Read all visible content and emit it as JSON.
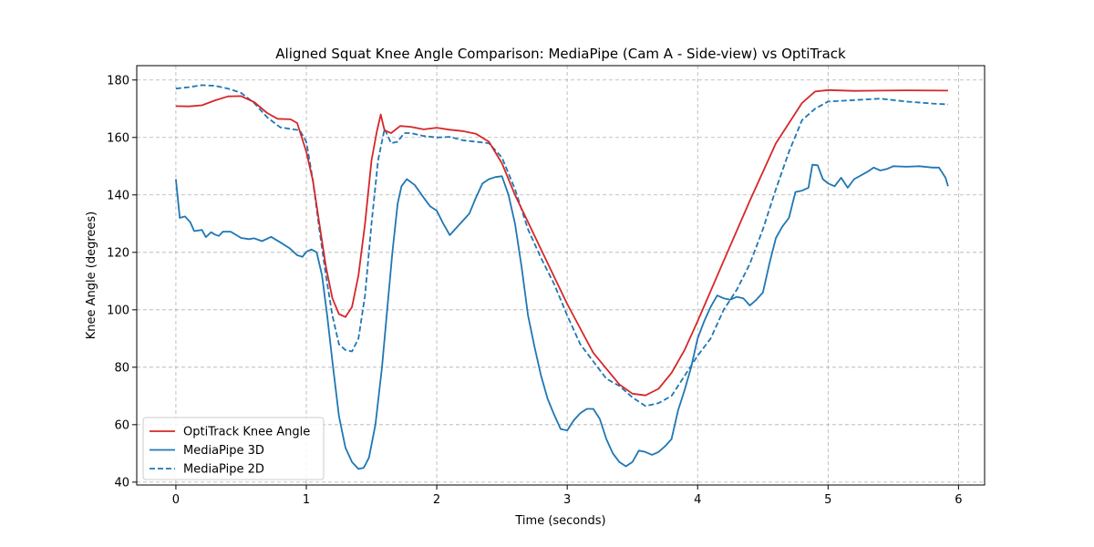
{
  "chart_data": {
    "type": "line",
    "title": "Aligned Squat Knee Angle Comparison: MediaPipe (Cam A - Side-view) vs OptiTrack",
    "xlabel": "Time (seconds)",
    "ylabel": "Knee Angle (degrees)",
    "xlim": [
      -0.3,
      6.2
    ],
    "ylim": [
      39,
      185
    ],
    "xticks": [
      0,
      1,
      2,
      3,
      4,
      5,
      6
    ],
    "yticks": [
      40,
      60,
      80,
      100,
      120,
      140,
      160,
      180
    ],
    "grid": true,
    "legend_position": "lower-left",
    "series": [
      {
        "name": "OptiTrack Knee Angle",
        "color": "#d62728",
        "dash": "solid",
        "points": [
          [
            0,
            170.9
          ],
          [
            0.1,
            170.8
          ],
          [
            0.2,
            171.2
          ],
          [
            0.3,
            172.9
          ],
          [
            0.4,
            174.3
          ],
          [
            0.5,
            174.4
          ],
          [
            0.6,
            172.3
          ],
          [
            0.7,
            168.5
          ],
          [
            0.78,
            166.5
          ],
          [
            0.88,
            166.3
          ],
          [
            0.93,
            165.0
          ],
          [
            1.0,
            155.0
          ],
          [
            1.05,
            145.0
          ],
          [
            1.1,
            130.0
          ],
          [
            1.15,
            115.0
          ],
          [
            1.2,
            104.0
          ],
          [
            1.25,
            98.5
          ],
          [
            1.3,
            97.5
          ],
          [
            1.35,
            101.0
          ],
          [
            1.4,
            112.0
          ],
          [
            1.45,
            130.0
          ],
          [
            1.5,
            152.0
          ],
          [
            1.54,
            162.0
          ],
          [
            1.57,
            168.0
          ],
          [
            1.6,
            162.5
          ],
          [
            1.65,
            161.5
          ],
          [
            1.72,
            164.0
          ],
          [
            1.8,
            163.7
          ],
          [
            1.9,
            162.8
          ],
          [
            2.0,
            163.4
          ],
          [
            2.1,
            162.7
          ],
          [
            2.2,
            162.2
          ],
          [
            2.3,
            161.3
          ],
          [
            2.4,
            158.5
          ],
          [
            2.5,
            151.0
          ],
          [
            2.6,
            140.0
          ],
          [
            2.8,
            121.0
          ],
          [
            3.0,
            102.0
          ],
          [
            3.2,
            85.0
          ],
          [
            3.4,
            74.0
          ],
          [
            3.5,
            70.8
          ],
          [
            3.6,
            70.2
          ],
          [
            3.7,
            72.5
          ],
          [
            3.8,
            78.0
          ],
          [
            3.9,
            86.0
          ],
          [
            4.0,
            96.0
          ],
          [
            4.2,
            117.0
          ],
          [
            4.4,
            138.0
          ],
          [
            4.6,
            158.0
          ],
          [
            4.8,
            172.0
          ],
          [
            4.9,
            176.0
          ],
          [
            5.0,
            176.5
          ],
          [
            5.2,
            176.2
          ],
          [
            5.4,
            176.3
          ],
          [
            5.6,
            176.4
          ],
          [
            5.92,
            176.3
          ]
        ]
      },
      {
        "name": "MediaPipe 3D",
        "color": "#1f77b4",
        "dash": "solid",
        "points": [
          [
            0,
            145.5
          ],
          [
            0.03,
            132.0
          ],
          [
            0.07,
            132.5
          ],
          [
            0.11,
            130.5
          ],
          [
            0.14,
            127.4
          ],
          [
            0.2,
            127.8
          ],
          [
            0.23,
            125.3
          ],
          [
            0.27,
            127.0
          ],
          [
            0.3,
            126.2
          ],
          [
            0.33,
            125.7
          ],
          [
            0.36,
            127.2
          ],
          [
            0.42,
            127.2
          ],
          [
            0.5,
            125.0
          ],
          [
            0.56,
            124.6
          ],
          [
            0.6,
            124.9
          ],
          [
            0.66,
            123.9
          ],
          [
            0.73,
            125.4
          ],
          [
            0.8,
            123.5
          ],
          [
            0.87,
            121.5
          ],
          [
            0.93,
            119.0
          ],
          [
            0.97,
            118.4
          ],
          [
            1.0,
            120.2
          ],
          [
            1.04,
            121.0
          ],
          [
            1.08,
            120.0
          ],
          [
            1.12,
            112.0
          ],
          [
            1.16,
            98.0
          ],
          [
            1.2,
            82.0
          ],
          [
            1.25,
            63.0
          ],
          [
            1.3,
            52.0
          ],
          [
            1.35,
            47.0
          ],
          [
            1.4,
            44.6
          ],
          [
            1.44,
            45.0
          ],
          [
            1.48,
            48.5
          ],
          [
            1.53,
            60.0
          ],
          [
            1.58,
            80.0
          ],
          [
            1.62,
            100.0
          ],
          [
            1.66,
            120.0
          ],
          [
            1.7,
            137.0
          ],
          [
            1.73,
            143.0
          ],
          [
            1.77,
            145.5
          ],
          [
            1.83,
            143.5
          ],
          [
            1.9,
            139.0
          ],
          [
            1.95,
            136.0
          ],
          [
            2.0,
            134.5
          ],
          [
            2.05,
            130.0
          ],
          [
            2.1,
            126.0
          ],
          [
            2.15,
            128.5
          ],
          [
            2.2,
            131.0
          ],
          [
            2.25,
            133.5
          ],
          [
            2.3,
            139.0
          ],
          [
            2.35,
            144.0
          ],
          [
            2.4,
            145.5
          ],
          [
            2.45,
            146.2
          ],
          [
            2.5,
            146.5
          ],
          [
            2.55,
            140.0
          ],
          [
            2.6,
            130.0
          ],
          [
            2.65,
            115.0
          ],
          [
            2.7,
            98.0
          ],
          [
            2.75,
            87.0
          ],
          [
            2.8,
            77.0
          ],
          [
            2.85,
            69.0
          ],
          [
            2.9,
            63.5
          ],
          [
            2.95,
            58.5
          ],
          [
            3.0,
            58.0
          ],
          [
            3.05,
            61.5
          ],
          [
            3.1,
            64.0
          ],
          [
            3.15,
            65.5
          ],
          [
            3.2,
            65.5
          ],
          [
            3.25,
            62.0
          ],
          [
            3.3,
            55.0
          ],
          [
            3.35,
            50.0
          ],
          [
            3.4,
            47.0
          ],
          [
            3.45,
            45.5
          ],
          [
            3.5,
            47.0
          ],
          [
            3.55,
            51.0
          ],
          [
            3.6,
            50.5
          ],
          [
            3.65,
            49.5
          ],
          [
            3.7,
            50.5
          ],
          [
            3.75,
            52.5
          ],
          [
            3.8,
            55.0
          ],
          [
            3.85,
            65.0
          ],
          [
            3.9,
            72.0
          ],
          [
            3.95,
            80.0
          ],
          [
            4.0,
            90.0
          ],
          [
            4.05,
            96.0
          ],
          [
            4.1,
            101.0
          ],
          [
            4.15,
            105.0
          ],
          [
            4.2,
            104.0
          ],
          [
            4.25,
            103.5
          ],
          [
            4.3,
            104.5
          ],
          [
            4.35,
            104.0
          ],
          [
            4.4,
            101.5
          ],
          [
            4.45,
            103.5
          ],
          [
            4.5,
            106.0
          ],
          [
            4.55,
            116.0
          ],
          [
            4.6,
            125.0
          ],
          [
            4.65,
            129.0
          ],
          [
            4.7,
            132.0
          ],
          [
            4.75,
            141.0
          ],
          [
            4.8,
            141.5
          ],
          [
            4.85,
            142.5
          ],
          [
            4.88,
            150.5
          ],
          [
            4.92,
            150.3
          ],
          [
            4.96,
            145.5
          ],
          [
            5.0,
            144.0
          ],
          [
            5.05,
            143.0
          ],
          [
            5.1,
            146.0
          ],
          [
            5.15,
            142.5
          ],
          [
            5.2,
            145.5
          ],
          [
            5.3,
            148.0
          ],
          [
            5.35,
            149.5
          ],
          [
            5.4,
            148.5
          ],
          [
            5.45,
            149.0
          ],
          [
            5.5,
            150.0
          ],
          [
            5.6,
            149.8
          ],
          [
            5.7,
            150.0
          ],
          [
            5.8,
            149.5
          ],
          [
            5.85,
            149.5
          ],
          [
            5.9,
            146.0
          ],
          [
            5.92,
            143.0
          ]
        ]
      },
      {
        "name": "MediaPipe 2D",
        "color": "#1f77b4",
        "dash": "dashed",
        "points": [
          [
            0,
            177.0
          ],
          [
            0.1,
            177.5
          ],
          [
            0.2,
            178.2
          ],
          [
            0.3,
            178.0
          ],
          [
            0.4,
            177.0
          ],
          [
            0.5,
            175.5
          ],
          [
            0.6,
            172.0
          ],
          [
            0.7,
            167.0
          ],
          [
            0.8,
            163.5
          ],
          [
            0.9,
            162.8
          ],
          [
            0.95,
            162.5
          ],
          [
            1.0,
            158.5
          ],
          [
            1.05,
            145.0
          ],
          [
            1.1,
            128.0
          ],
          [
            1.15,
            112.0
          ],
          [
            1.2,
            98.0
          ],
          [
            1.25,
            88.0
          ],
          [
            1.3,
            86.0
          ],
          [
            1.35,
            85.5
          ],
          [
            1.4,
            90.0
          ],
          [
            1.45,
            105.0
          ],
          [
            1.5,
            130.0
          ],
          [
            1.55,
            152.0
          ],
          [
            1.6,
            163.0
          ],
          [
            1.65,
            158.0
          ],
          [
            1.7,
            158.5
          ],
          [
            1.75,
            161.5
          ],
          [
            1.8,
            161.5
          ],
          [
            1.9,
            160.5
          ],
          [
            2.0,
            160.0
          ],
          [
            2.1,
            160.2
          ],
          [
            2.2,
            159.0
          ],
          [
            2.3,
            158.5
          ],
          [
            2.4,
            158.0
          ],
          [
            2.5,
            153.0
          ],
          [
            2.6,
            142.0
          ],
          [
            2.7,
            128.0
          ],
          [
            2.8,
            118.0
          ],
          [
            2.9,
            109.0
          ],
          [
            3.0,
            98.0
          ],
          [
            3.1,
            88.0
          ],
          [
            3.2,
            82.0
          ],
          [
            3.3,
            76.0
          ],
          [
            3.4,
            73.5
          ],
          [
            3.5,
            69.5
          ],
          [
            3.6,
            66.5
          ],
          [
            3.7,
            67.5
          ],
          [
            3.8,
            70.0
          ],
          [
            3.9,
            77.0
          ],
          [
            4.0,
            84.0
          ],
          [
            4.1,
            90.0
          ],
          [
            4.2,
            100.0
          ],
          [
            4.3,
            107.0
          ],
          [
            4.4,
            116.0
          ],
          [
            4.5,
            128.0
          ],
          [
            4.6,
            142.0
          ],
          [
            4.7,
            155.0
          ],
          [
            4.8,
            166.0
          ],
          [
            4.9,
            170.0
          ],
          [
            5.0,
            172.5
          ],
          [
            5.2,
            173.0
          ],
          [
            5.4,
            173.5
          ],
          [
            5.6,
            172.5
          ],
          [
            5.8,
            171.8
          ],
          [
            5.92,
            171.5
          ]
        ]
      }
    ]
  }
}
